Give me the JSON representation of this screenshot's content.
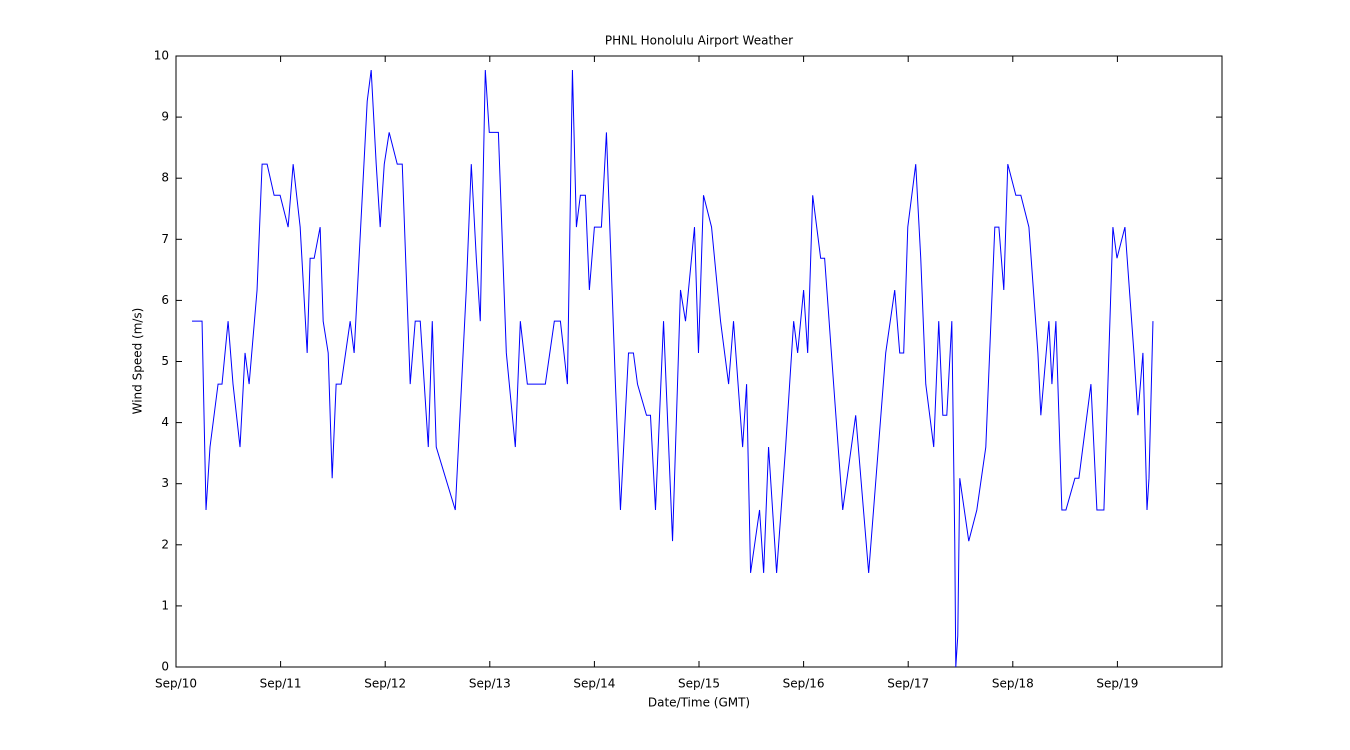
{
  "chart_data": {
    "type": "line",
    "title": "PHNL Honolulu Airport Weather",
    "x_label": "Date/Time (GMT)",
    "y_label": "Wind Speed (m/s)",
    "xlim": [
      0,
      10
    ],
    "ylim": [
      0,
      10
    ],
    "xticks": [
      {
        "value": 0,
        "label": "Sep/10"
      },
      {
        "value": 1,
        "label": "Sep/11"
      },
      {
        "value": 2,
        "label": "Sep/12"
      },
      {
        "value": 3,
        "label": "Sep/13"
      },
      {
        "value": 4,
        "label": "Sep/14"
      },
      {
        "value": 5,
        "label": "Sep/15"
      },
      {
        "value": 6,
        "label": "Sep/16"
      },
      {
        "value": 7,
        "label": "Sep/17"
      },
      {
        "value": 8,
        "label": "Sep/18"
      },
      {
        "value": 9,
        "label": "Sep/19"
      }
    ],
    "yticks": [
      0,
      1,
      2,
      3,
      4,
      5,
      6,
      7,
      8,
      9,
      10
    ],
    "grid": false,
    "x": [
      0.153,
      0.249,
      0.287,
      0.325,
      0.402,
      0.44,
      0.498,
      0.545,
      0.612,
      0.66,
      0.699,
      0.775,
      0.823,
      0.871,
      0.938,
      0.995,
      1.072,
      1.12,
      1.187,
      1.254,
      1.282,
      1.321,
      1.378,
      1.407,
      1.455,
      1.493,
      1.531,
      1.579,
      1.665,
      1.703,
      1.828,
      1.866,
      1.914,
      1.952,
      1.991,
      2.038,
      2.115,
      2.163,
      2.239,
      2.287,
      2.335,
      2.412,
      2.45,
      2.488,
      2.67,
      2.775,
      2.823,
      2.871,
      2.909,
      2.957,
      2.995,
      3.082,
      3.158,
      3.244,
      3.292,
      3.359,
      3.531,
      3.617,
      3.675,
      3.742,
      3.79,
      3.828,
      3.866,
      3.914,
      3.952,
      4.0,
      4.067,
      4.115,
      4.201,
      4.249,
      4.326,
      4.373,
      4.412,
      4.498,
      4.536,
      4.584,
      4.661,
      4.747,
      4.823,
      4.871,
      4.957,
      4.995,
      5.043,
      5.12,
      5.206,
      5.283,
      5.33,
      5.417,
      5.455,
      5.493,
      5.579,
      5.618,
      5.665,
      5.742,
      5.828,
      5.905,
      5.943,
      6.0,
      6.039,
      6.087,
      6.163,
      6.201,
      6.287,
      6.374,
      6.498,
      6.622,
      6.785,
      6.871,
      6.919,
      6.957,
      6.996,
      7.072,
      7.12,
      7.168,
      7.244,
      7.292,
      7.331,
      7.369,
      7.417,
      7.445,
      7.455,
      7.474,
      7.493,
      7.579,
      7.656,
      7.742,
      7.828,
      7.867,
      7.914,
      7.952,
      8.029,
      8.077,
      8.154,
      8.24,
      8.268,
      8.345,
      8.374,
      8.412,
      8.469,
      8.508,
      8.594,
      8.632,
      8.747,
      8.804,
      8.871,
      8.957,
      8.996,
      9.072,
      9.158,
      9.196,
      9.244,
      9.283,
      9.302,
      9.34
    ],
    "series": [
      {
        "name": "Wind Speed",
        "color": "#0000ff",
        "values": [
          5.66,
          5.66,
          2.57,
          3.6,
          4.63,
          4.63,
          5.66,
          4.63,
          3.6,
          5.14,
          4.63,
          6.17,
          8.23,
          8.23,
          7.72,
          7.72,
          7.2,
          8.23,
          7.2,
          5.14,
          6.69,
          6.69,
          7.2,
          5.66,
          5.14,
          3.09,
          4.63,
          4.63,
          5.66,
          5.14,
          9.26,
          9.77,
          8.23,
          7.2,
          8.23,
          8.75,
          8.23,
          8.23,
          4.63,
          5.66,
          5.66,
          3.6,
          5.66,
          3.6,
          2.57,
          6.17,
          8.23,
          6.69,
          5.66,
          9.77,
          8.75,
          8.75,
          5.14,
          3.6,
          5.66,
          4.63,
          4.63,
          5.66,
          5.66,
          4.63,
          9.77,
          7.2,
          7.72,
          7.72,
          6.17,
          7.2,
          7.2,
          8.75,
          4.63,
          2.57,
          5.14,
          5.14,
          4.63,
          4.12,
          4.12,
          2.57,
          5.66,
          2.06,
          6.17,
          5.66,
          7.2,
          5.14,
          7.72,
          7.2,
          5.66,
          4.63,
          5.66,
          3.6,
          4.63,
          1.54,
          2.57,
          1.54,
          3.6,
          1.54,
          3.6,
          5.66,
          5.14,
          6.17,
          5.14,
          7.72,
          6.69,
          6.69,
          4.63,
          2.57,
          4.12,
          1.54,
          5.14,
          6.17,
          5.14,
          5.14,
          7.2,
          8.23,
          6.69,
          4.63,
          3.6,
          5.66,
          4.12,
          4.12,
          5.66,
          2.06,
          0,
          0.51,
          3.09,
          2.06,
          2.57,
          3.6,
          7.2,
          7.2,
          6.17,
          8.23,
          7.72,
          7.72,
          7.2,
          5.14,
          4.12,
          5.66,
          4.63,
          5.66,
          2.57,
          2.57,
          3.09,
          3.09,
          4.63,
          2.57,
          2.57,
          7.2,
          6.69,
          7.2,
          5.14,
          4.12,
          5.14,
          2.57,
          3.09,
          5.66
        ]
      }
    ]
  }
}
